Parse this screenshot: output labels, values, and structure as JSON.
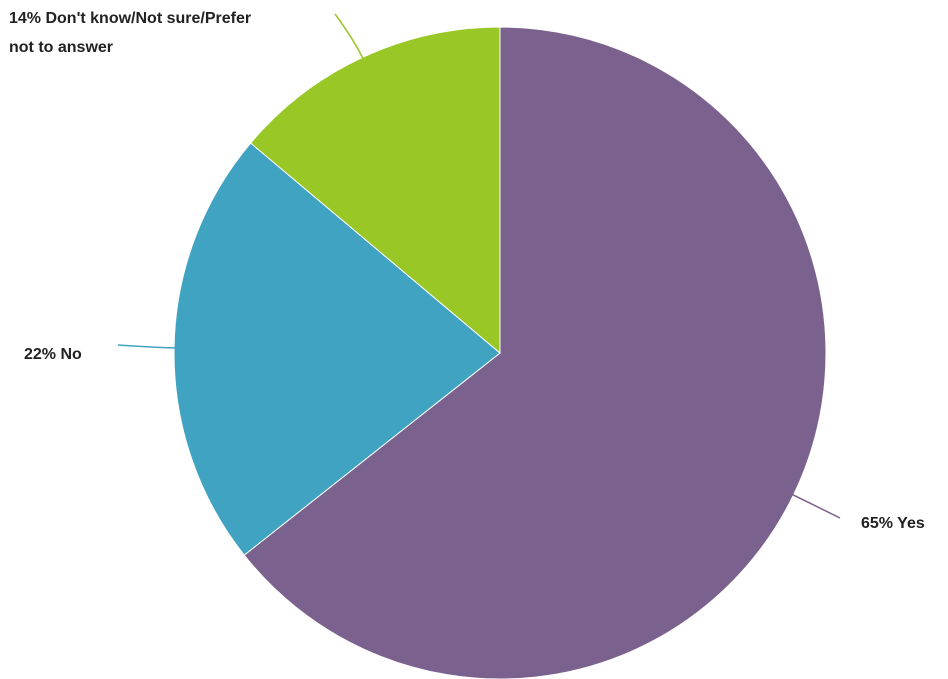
{
  "chart_data": {
    "type": "pie",
    "title": "",
    "slices": [
      {
        "label": "Yes",
        "value": 65,
        "display": "65% Yes",
        "color": "#7b618e"
      },
      {
        "label": "No",
        "value": 22,
        "display": "22% No",
        "color": "#40a3c2"
      },
      {
        "label": "Don't know/Not sure/Prefer not to answer",
        "value": 14,
        "display_lines": [
          "14% Don't know/Not sure/Prefer",
          "not to answer"
        ],
        "color": "#98c726"
      }
    ],
    "legend": "none"
  }
}
